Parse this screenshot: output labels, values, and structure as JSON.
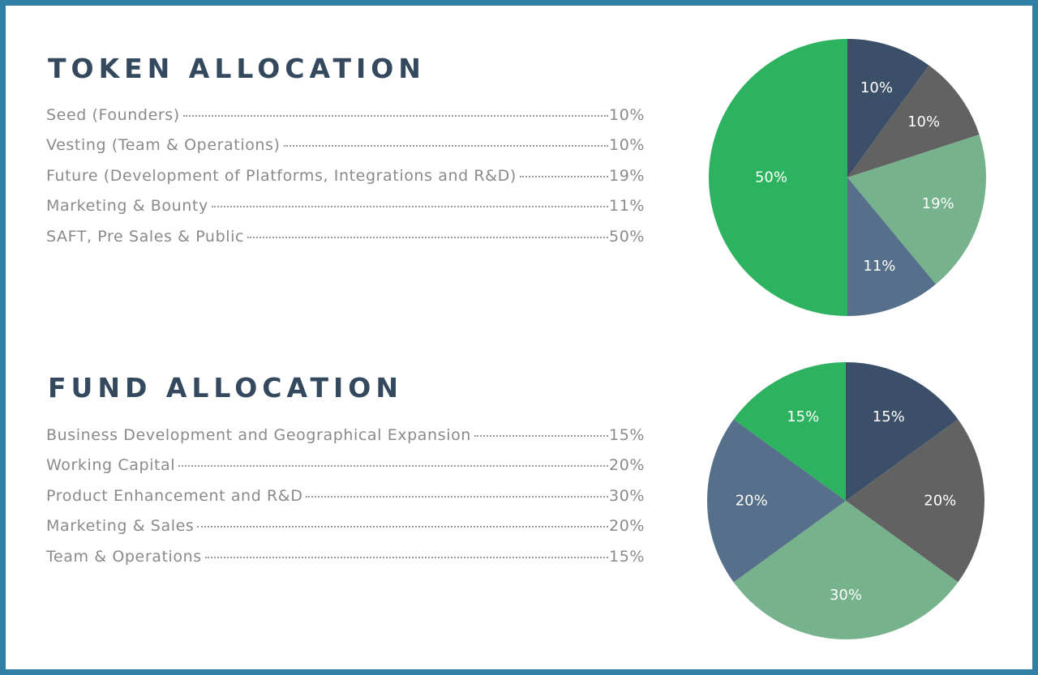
{
  "colors": {
    "frame": "#2f7fa6",
    "title": "#34495e",
    "legend_text": "#8a8a8a",
    "navy": "#3b4f69",
    "gray": "#626262",
    "light_green": "#76b38d",
    "slate_blue": "#566f8a",
    "green": "#2db35f"
  },
  "chart_data": [
    {
      "type": "pie",
      "title": "TOKEN ALLOCATION",
      "categories": [
        "Seed (Founders)",
        "Vesting (Team & Operations)",
        "Future (Development of Platforms, Integrations and R&D)",
        "Marketing & Bounty",
        "SAFT, Pre Sales & Public"
      ],
      "values": [
        10,
        10,
        19,
        11,
        50
      ],
      "value_labels": [
        "10%",
        "10%",
        "19%",
        "11%",
        "50%"
      ],
      "colors": [
        "#3b4f69",
        "#626262",
        "#76b38d",
        "#566f8a",
        "#2db35f"
      ],
      "start": "top, clockwise"
    },
    {
      "type": "pie",
      "title": "FUND ALLOCATION",
      "categories": [
        "Business Development and Geographical Expansion",
        "Working Capital",
        "Product Enhancement and R&D",
        "Marketing & Sales",
        "Team & Operations"
      ],
      "values": [
        15,
        20,
        30,
        20,
        15
      ],
      "value_labels": [
        "15%",
        "20%",
        "30%",
        "20%",
        "15%"
      ],
      "colors": [
        "#3b4f69",
        "#626262",
        "#76b38d",
        "#566f8a",
        "#2db35f"
      ],
      "start": "top, clockwise"
    }
  ]
}
